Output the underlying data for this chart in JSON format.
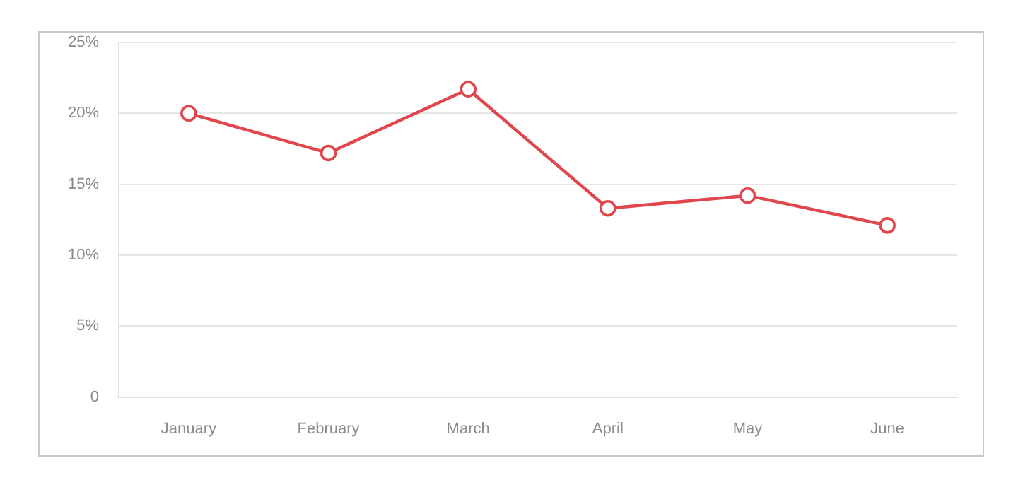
{
  "chart_data": {
    "type": "line",
    "categories": [
      "January",
      "February",
      "March",
      "April",
      "May",
      "June"
    ],
    "series": [
      {
        "color": "#e0474c",
        "values": [
          20,
          17.2,
          21.7,
          13.3,
          14.2,
          12.1
        ]
      }
    ],
    "ylim": [
      0,
      25
    ],
    "yticks": [
      0,
      {
        "value": 5,
        "label": "5%"
      },
      {
        "value": 10,
        "label": "10%"
      },
      {
        "value": 15,
        "label": "15%"
      },
      {
        "value": 20,
        "label": "20%"
      },
      {
        "value": 25,
        "label": "25%"
      }
    ],
    "grid": "y",
    "legend": false,
    "marker": "circle",
    "line_style": "solid"
  }
}
